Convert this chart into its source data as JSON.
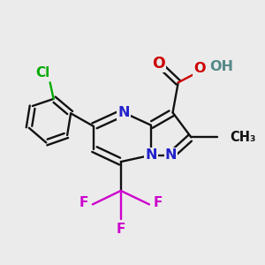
{
  "background_color": "#ebebeb",
  "atom_colors": {
    "C": "#000000",
    "N": "#2222cc",
    "O": "#cc0000",
    "F": "#cc00cc",
    "Cl": "#00aa00",
    "H": "#558888"
  },
  "figsize": [
    3.0,
    3.0
  ],
  "dpi": 100
}
